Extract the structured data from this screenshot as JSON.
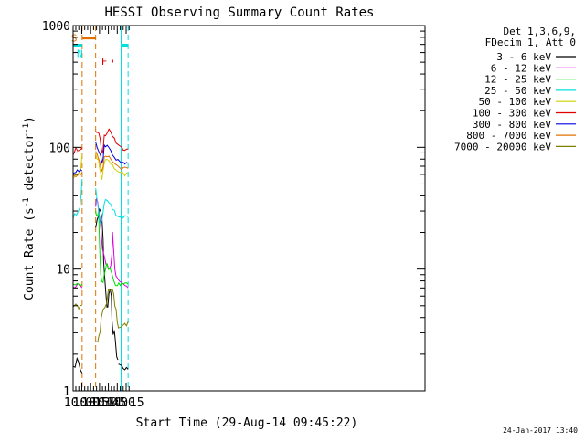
{
  "chart_data": {
    "type": "line",
    "title": "HESSI Observing Summary Count Rates",
    "xlabel": "Start Time (29-Aug-14 09:45:22)",
    "ylabel": "Count Rate (s⁻¹ detector⁻¹)",
    "ylabel_main": "Count Rate (s",
    "ylabel_sup1": "-1",
    "ylabel_mid": " detector",
    "ylabel_sup2": "-1",
    "ylabel_end": ")",
    "yscale": "log",
    "xlim": [
      585.4,
      1180
    ],
    "ylim": [
      1,
      1000
    ],
    "x_ticks": [
      {
        "t": 600,
        "label": "10:00"
      },
      {
        "t": 615,
        "label": "10:15"
      },
      {
        "t": 630,
        "label": "10:30"
      },
      {
        "t": 645,
        "label": "10:45"
      },
      {
        "t": 660,
        "label": "11:00"
      },
      {
        "t": 675,
        "label": "11:15"
      }
    ],
    "y_ticks": [
      {
        "v": 1,
        "label": "1"
      },
      {
        "v": 10,
        "label": "10"
      },
      {
        "v": 100,
        "label": "100"
      },
      {
        "v": 1000,
        "label": "1000"
      }
    ],
    "legend_header": [
      "Det 1,3,6,9,",
      "FDecim 1, Att 0"
    ],
    "legend_position": "right",
    "footer_date": "24-Jan-2017 13:40",
    "series": [
      {
        "name": "3 - 6 keV",
        "color": "#000000",
        "segments": [
          {
            "x": [
              585.4,
              592,
              600.6
            ],
            "y": [
              1.5,
              1.8,
              1.4
            ]
          },
          {
            "x": [
              623.5,
              626,
              628,
              630,
              632,
              634,
              636,
              637,
              639,
              641,
              642.5,
              644,
              646,
              648,
              650,
              651,
              653,
              655,
              657,
              659,
              661
            ],
            "y": [
              22,
              25,
              28,
              32,
              30,
              27,
              18,
              12,
              8,
              6,
              5,
              5,
              6,
              7,
              6,
              4,
              3,
              3,
              2.5,
              2,
              1.8
            ]
          },
          {
            "x": [
              662,
              670,
              678.3
            ],
            "y": [
              1.7,
              1.6,
              1.5
            ]
          }
        ]
      },
      {
        "name": "6 - 12 keV",
        "color": "#e000e0",
        "segments": [
          {
            "x": [
              585.4,
              593,
              600.6
            ],
            "y": [
              7,
              7.5,
              7
            ]
          },
          {
            "x": [
              623.5,
              625,
              627,
              629,
              631,
              633,
              635,
              637,
              639,
              641,
              643,
              645,
              647,
              649,
              651,
              652,
              654,
              656,
              658,
              660,
              662,
              670,
              678.3
            ],
            "y": [
              32,
              38,
              35,
              30,
              25,
              20,
              15,
              13,
              12,
              11,
              11,
              10,
              10,
              11,
              13,
              20,
              14,
              10,
              9,
              8.5,
              8,
              7.5,
              7
            ]
          }
        ]
      },
      {
        "name": "12 - 25 keV",
        "color": "#00e000",
        "segments": [
          {
            "x": [
              585.4,
              593,
              600.6
            ],
            "y": [
              7.5,
              7.5,
              7.5
            ]
          },
          {
            "x": [
              623.5,
              625,
              627,
              628.5,
              630,
              632,
              634,
              636,
              638,
              640,
              642,
              645,
              648,
              651,
              654,
              657,
              660,
              665,
              670,
              678.3
            ],
            "y": [
              30,
              28,
              28,
              30,
              16,
              9,
              8,
              8,
              9,
              10,
              11,
              10,
              10,
              9,
              8,
              7.5,
              7.5,
              7.5,
              7.5,
              7.5
            ]
          }
        ]
      },
      {
        "name": "25 - 50 keV",
        "color": "#00e0e0",
        "segments": [
          {
            "x": [
              585.4,
              588,
              591,
              594,
              597,
              599,
              600.6
            ],
            "y": [
              27,
              28,
              28,
              29,
              32,
              42,
              55
            ]
          },
          {
            "x": [
              623.5,
              626,
              628,
              630,
              632,
              634,
              636,
              638,
              640,
              643,
              646,
              649,
              652,
              655,
              658,
              661,
              665,
              670,
              678.3
            ],
            "y": [
              45,
              38,
              32,
              25,
              24,
              26,
              30,
              34,
              36,
              36,
              34,
              33,
              31,
              30,
              28,
              27,
              27,
              27,
              27
            ]
          }
        ]
      },
      {
        "name": "50 - 100 keV",
        "color": "#d0d000",
        "segments": [
          {
            "x": [
              585.4,
              590,
              595,
              598,
              600.6
            ],
            "y": [
              57,
              58,
              60,
              66,
              88
            ]
          },
          {
            "x": [
              623.5,
              626,
              628,
              630,
              632,
              634,
              636,
              638,
              640,
              643,
              646,
              649,
              652,
              655,
              658,
              661,
              665,
              670,
              678.3
            ],
            "y": [
              90,
              82,
              78,
              70,
              60,
              56,
              65,
              75,
              78,
              78,
              76,
              73,
              70,
              68,
              66,
              64,
              62,
              60,
              60
            ]
          }
        ]
      },
      {
        "name": "100 - 300 keV",
        "color": "#e00000",
        "segments": [
          {
            "x": [
              585.4,
              587,
              590,
              593,
              596,
              599,
              600.6
            ],
            "y": [
              88,
              92,
              96,
              96,
              97,
              100,
              100
            ]
          },
          {
            "x": [
              623.5,
              625,
              627,
              629,
              631,
              633,
              635,
              636,
              638,
              640,
              643,
              646,
              649,
              652,
              655,
              658,
              661,
              665,
              670,
              678.3
            ],
            "y": [
              140,
              135,
              132,
              128,
              120,
              100,
              88,
              95,
              125,
              128,
              132,
              140,
              135,
              125,
              118,
              110,
              105,
              100,
              98,
              97
            ]
          }
        ]
      },
      {
        "name": "300 - 800 keV",
        "color": "#0000e0",
        "segments": [
          {
            "x": [
              585.4,
              590,
              595,
              600.6
            ],
            "y": [
              63,
              64,
              64,
              64
            ]
          },
          {
            "x": [
              623.5,
              626,
              628,
              630,
              632,
              634,
              636,
              638,
              640,
              643,
              646,
              649,
              652,
              655,
              658,
              661,
              665,
              670,
              678.3
            ],
            "y": [
              110,
              100,
              96,
              92,
              85,
              72,
              80,
              102,
              102,
              104,
              100,
              94,
              88,
              82,
              80,
              77,
              75,
              74,
              74
            ]
          }
        ]
      },
      {
        "name": "800 - 7000 keV",
        "color": "#e07000",
        "segments": [
          {
            "x": [
              585.4,
              590,
              595,
              600.6
            ],
            "y": [
              58,
              58,
              59,
              62
            ]
          },
          {
            "x": [
              623.5,
              626,
              628,
              630,
              632,
              634,
              636,
              638,
              640,
              643,
              646,
              649,
              652,
              655,
              658,
              661,
              665,
              670,
              678.3
            ],
            "y": [
              95,
              90,
              84,
              78,
              70,
              62,
              70,
              84,
              86,
              86,
              82,
              78,
              74,
              72,
              70,
              68,
              68,
              67,
              67
            ]
          }
        ]
      },
      {
        "name": "7000 - 20000 keV",
        "color": "#808000",
        "segments": [
          {
            "x": [
              585.4,
              590,
              595,
              600.6
            ],
            "y": [
              5,
              5,
              5,
              5
            ]
          },
          {
            "x": [
              623.5,
              627,
              629,
              631,
              633,
              636,
              639,
              642,
              645,
              648,
              650,
              652,
              654,
              656,
              658,
              660,
              662,
              666,
              670,
              678.3
            ],
            "y": [
              2.6,
              2.6,
              2.8,
              3,
              3.8,
              4.5,
              5,
              5.5,
              6.5,
              7,
              6.8,
              6.5,
              6,
              5,
              4.5,
              3.5,
              3.2,
              3.4,
              3.5,
              3.7
            ]
          }
        ]
      }
    ],
    "flags": [
      {
        "label": "S",
        "color": "#e07000",
        "x1": 600.6,
        "x2": 623.5,
        "level": 790
      },
      {
        "label": "N",
        "color": "#00e0e0",
        "x1": 585.4,
        "x2": 600.6,
        "level": 690
      },
      {
        "label": "",
        "color": "#00e0e0",
        "x1": 666.5,
        "x2": 678.3,
        "level": 690
      },
      {
        "label": "F",
        "color": "#e00000",
        "x1": 651.5,
        "x2": 653.2,
        "level": 510
      }
    ],
    "vlines": [
      {
        "t": 600.6,
        "color": "#e07000",
        "dash": true
      },
      {
        "t": 623.5,
        "color": "#e07000",
        "dash": true
      },
      {
        "t": 666.5,
        "color": "#00e0e0",
        "dash": false
      },
      {
        "t": 678.3,
        "color": "#00e0e0",
        "dash": true
      },
      {
        "t": 585.4,
        "color": "#00e0e0",
        "dash": false
      }
    ]
  }
}
